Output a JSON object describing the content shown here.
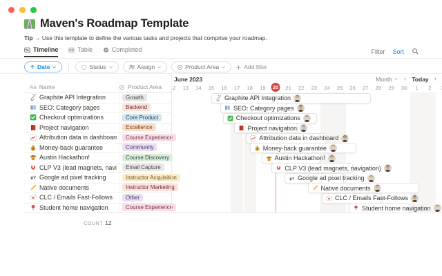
{
  "window": {
    "title": "Maven's Roadmap Template",
    "title_icon": "railway-track",
    "tip_label": "Tip",
    "tip_arrow": "→",
    "tip_text": "Use this template to define the various tasks and projects that comprise your roadmap."
  },
  "tabs": [
    {
      "label": "Timeline",
      "icon": "timeline-view",
      "active": true
    },
    {
      "label": "Table",
      "icon": "table-view",
      "active": false
    },
    {
      "label": "Completed",
      "icon": "completed-view",
      "active": false
    }
  ],
  "toolbar": {
    "filter_label": "Filter",
    "sort_label": "Sort",
    "search_icon": "magnifier"
  },
  "filter_bar": {
    "date_label": "Date",
    "status_label": "Status",
    "assign_label": "Assign",
    "product_area_label": "Product Area",
    "add_filter_label": "Add filter"
  },
  "timeline": {
    "month_label": "June 2023",
    "zoom_label": "Month",
    "prev_label": "‹",
    "today_label": "Today",
    "next_label": "›",
    "today_index": 8,
    "days": [
      {
        "label": "12"
      },
      {
        "label": "13"
      },
      {
        "label": "14"
      },
      {
        "label": "15"
      },
      {
        "label": "16"
      },
      {
        "label": "17",
        "weekend": true
      },
      {
        "label": "18",
        "weekend": true
      },
      {
        "label": "19"
      },
      {
        "label": "20",
        "today": true
      },
      {
        "label": "21"
      },
      {
        "label": "22"
      },
      {
        "label": "23"
      },
      {
        "label": "24",
        "weekend": true
      },
      {
        "label": "25",
        "weekend": true
      },
      {
        "label": "26"
      },
      {
        "label": "27"
      },
      {
        "label": "28"
      },
      {
        "label": "29"
      },
      {
        "label": "30"
      },
      {
        "label": "1",
        "weekend": true
      },
      {
        "label": "2",
        "weekend": true
      },
      {
        "label": "3"
      }
    ]
  },
  "table": {
    "name_header": "Name",
    "name_header_icon": "Aa",
    "area_header": "Product Area",
    "area_header_icon": "bullseye",
    "count_label": "COUNT",
    "count_value": "12"
  },
  "rows": [
    {
      "icon": "link",
      "name": "Graphite API Integration",
      "area": "Growth",
      "color": "gray",
      "start_day": 15.0,
      "end_day": 27.4
    },
    {
      "icon": "book",
      "name": "SEO: Category pages",
      "area": "Backend",
      "color": "red",
      "start_day": 15.7,
      "end_day": 20.9
    },
    {
      "icon": "check",
      "name": "Checkout optimizations",
      "area": "Core Product",
      "color": "blue",
      "start_day": 15.9,
      "end_day": 23.2
    },
    {
      "icon": "red-book",
      "name": "Project navigation",
      "area": "Excellence",
      "color": "orange",
      "start_day": 16.8,
      "end_day": 21.7
    },
    {
      "icon": "chart",
      "name": "Attribution data in dashboard",
      "area": "Course Experience",
      "color": "pink",
      "start_day": 17.7,
      "end_day": 24.0
    },
    {
      "icon": "moneybag",
      "name": "Money-back guarantee",
      "area": "Community",
      "color": "purple",
      "start_day": 18.0,
      "end_day": 26.3
    },
    {
      "icon": "cowboy",
      "name": "Austin Hackathon!",
      "area": "Course Discovery",
      "color": "green",
      "start_day": 18.9,
      "end_day": 23.5
    },
    {
      "icon": "magnet",
      "name": "CLP V3 (lead magnets, navigation)",
      "area": "Email Capture",
      "color": "gray",
      "start_day": 19.7,
      "end_day": 26.0
    },
    {
      "icon": "paws",
      "name": "Google ad pixel tracking",
      "area": "Instructor Acquisition",
      "color": "yellow",
      "start_day": 20.7,
      "end_day": 25.3
    },
    {
      "icon": "pencil",
      "name": "Native documents",
      "area": "Instructor Marketing",
      "color": "red",
      "start_day": 22.5,
      "end_day": 31.2
    },
    {
      "icon": "love-letter",
      "name": "CLC / Emails Fast-Follows",
      "area": "Other",
      "color": "purple",
      "start_day": 23.6,
      "end_day": 28.3
    },
    {
      "icon": "pin",
      "name": "Student home navigation",
      "area": "Course Experience",
      "color": "pink",
      "start_day": 25.7,
      "end_day": 30.5
    }
  ],
  "colors": {
    "accent_blue": "#2383e2",
    "today_red": "#d6453c",
    "traffic_lights": [
      "#ff5f57",
      "#febc2e",
      "#28c840"
    ],
    "tags": {
      "gray": {
        "bg": "#e8e7e4",
        "text": "#494743"
      },
      "red": {
        "bg": "#fbe0dc",
        "text": "#67322c"
      },
      "blue": {
        "bg": "#d3e5ef",
        "text": "#254357"
      },
      "orange": {
        "bg": "#fadec9",
        "text": "#6b3f20"
      },
      "pink": {
        "bg": "#f8dee6",
        "text": "#6e3449"
      },
      "purple": {
        "bg": "#e8def2",
        "text": "#4b3863"
      },
      "green": {
        "bg": "#dbecdb",
        "text": "#2c5140"
      },
      "yellow": {
        "bg": "#fbeccb",
        "text": "#6b5121"
      }
    }
  }
}
